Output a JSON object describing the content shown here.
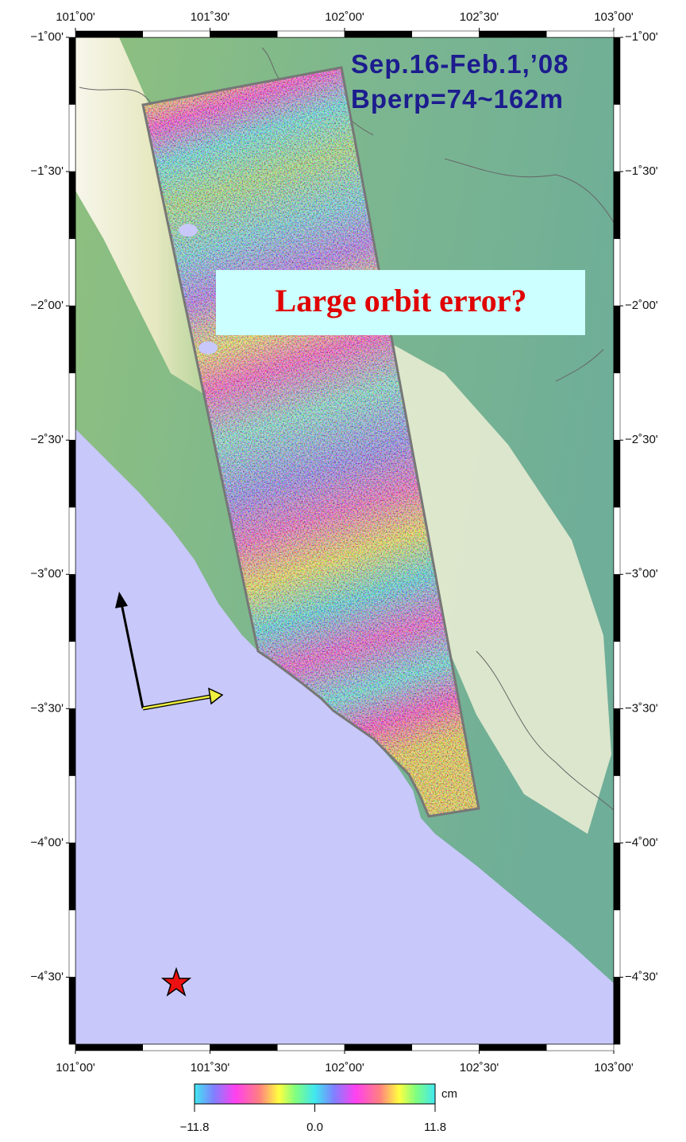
{
  "map": {
    "title_lines": [
      "Sep.16-Feb.1,’08",
      "Bperp=74~162m"
    ],
    "annotation": "Large orbit error?",
    "xlim": [
      101,
      103
    ],
    "ylim": [
      -4.75,
      -1
    ],
    "xticks": [
      {
        "value": 101,
        "label": "101˚00'"
      },
      {
        "value": 101.5,
        "label": "101˚30'"
      },
      {
        "value": 102,
        "label": "102˚00'"
      },
      {
        "value": 102.5,
        "label": "102˚30'"
      },
      {
        "value": 103,
        "label": "103˚00'"
      }
    ],
    "yticks": [
      {
        "value": -1,
        "label": "−1˚00'"
      },
      {
        "value": -1.5,
        "label": "−1˚30'"
      },
      {
        "value": -2,
        "label": "−2˚00'"
      },
      {
        "value": -2.5,
        "label": "−2˚30'"
      },
      {
        "value": -3,
        "label": "−3˚00'"
      },
      {
        "value": -3.5,
        "label": "−3˚30'"
      },
      {
        "value": -4,
        "label": "−4˚00'"
      },
      {
        "value": -4.5,
        "label": "−4˚30'"
      }
    ],
    "colorbar": {
      "unit": "cm",
      "lim": [
        -11.8,
        11.8
      ],
      "ticks": [
        {
          "value": -11.8,
          "label": "−11.8"
        },
        {
          "value": 0,
          "label": "0.0"
        },
        11.8
      ]
    }
  }
}
